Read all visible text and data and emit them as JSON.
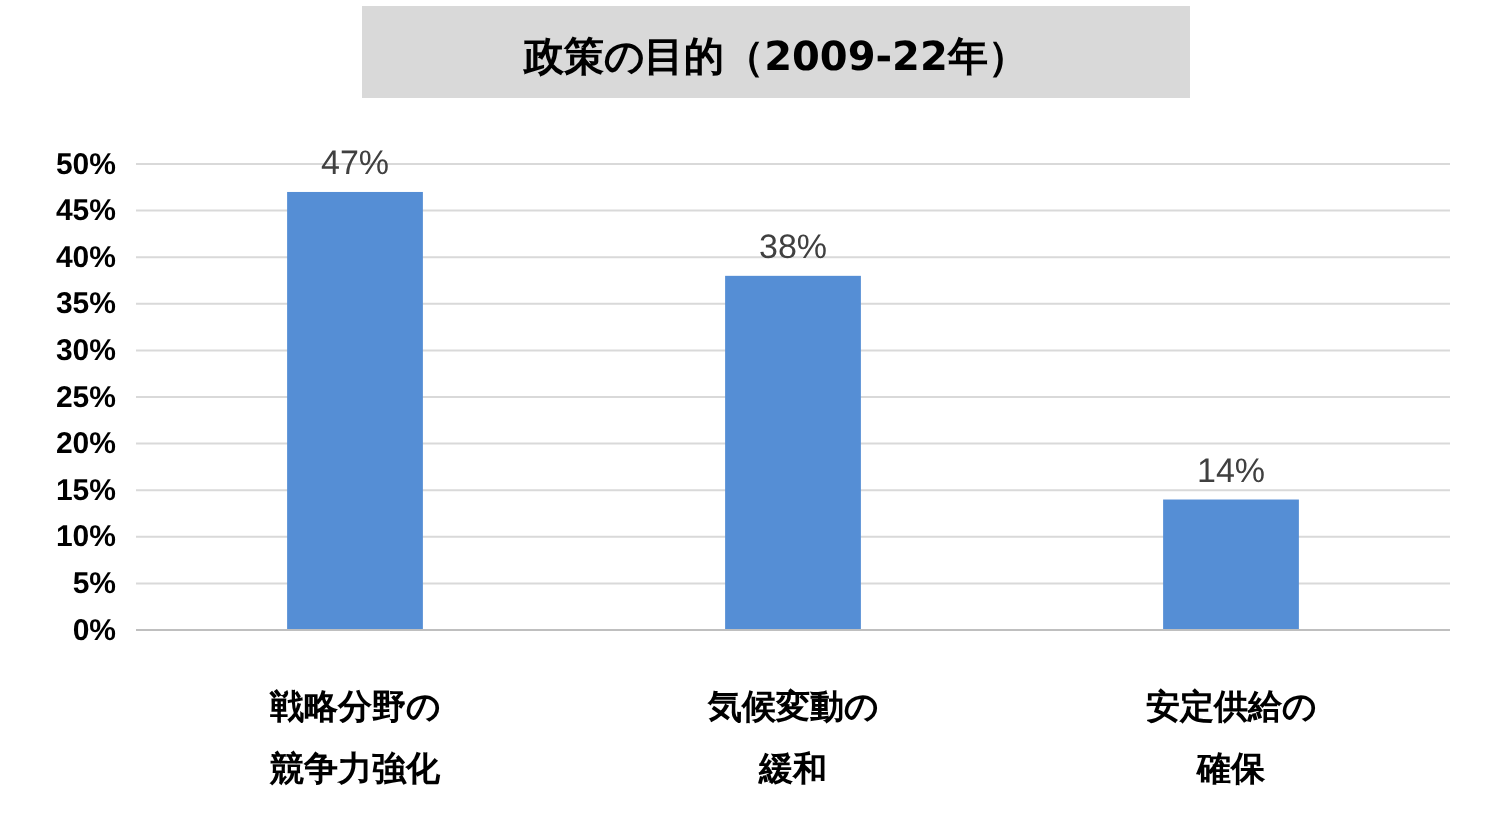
{
  "chart_data": {
    "type": "bar",
    "title": "政策の目的（2009-22年）",
    "categories": [
      "戦略分野の競争力強化",
      "気候変動の緩和",
      "安定供給の確保"
    ],
    "values": [
      47,
      38,
      14
    ],
    "color": "#558ed5",
    "value_labels": [
      "47%",
      "38%",
      "14%"
    ],
    "ylim": [
      0,
      50
    ],
    "yticks": [
      {
        "value": 0,
        "label": "0%"
      },
      {
        "value": 5,
        "label": "5%"
      },
      {
        "value": 10,
        "label": "10%"
      },
      {
        "value": 15,
        "label": "15%"
      },
      {
        "value": 20,
        "label": "20%"
      },
      {
        "value": 25,
        "label": "25%"
      },
      {
        "value": 30,
        "label": "30%"
      },
      {
        "value": 35,
        "label": "35%"
      },
      {
        "value": 40,
        "label": "40%"
      },
      {
        "value": 45,
        "label": "45%"
      },
      {
        "value": 50,
        "label": "50%"
      }
    ],
    "grid": "y"
  }
}
